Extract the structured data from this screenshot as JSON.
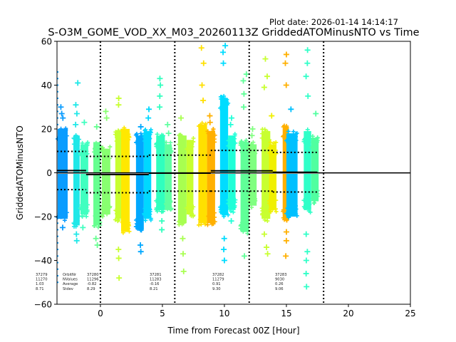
{
  "plot_date": "Plot date: 2026-01-14 14:14:17",
  "chart_data": {
    "type": "scatter",
    "title": "S-O3M_GOME_VOD_XX_M03_20260113Z GriddedATOMinusNTO vs Time",
    "xlabel": "Time from Forecast 00Z [Hour]",
    "ylabel": "GriddedATOMinusNTO",
    "xlim": [
      -3.5,
      25
    ],
    "ylim": [
      -60,
      60
    ],
    "xticks": [
      0,
      5,
      10,
      15,
      20,
      25
    ],
    "xtick_labels": [
      "0",
      "5",
      "10",
      "15",
      "20",
      "25"
    ],
    "yticks": [
      -60,
      -40,
      -20,
      0,
      20,
      40,
      60
    ],
    "ytick_labels": [
      "−60",
      "−40",
      "−20",
      "0",
      "20",
      "40",
      "60"
    ],
    "grid": false,
    "forecast_boundaries": [
      0,
      6,
      12,
      18
    ],
    "zero_line": 0,
    "marker": "+",
    "bands": [
      {
        "x": [
          -3.45,
          -2.64
        ],
        "color": "#0a9cff",
        "top": 21,
        "bottom": -22,
        "outliers": [
          30,
          27,
          25,
          -25
        ]
      },
      {
        "x": [
          -2.18,
          -1.67
        ],
        "color": "#20e8e8",
        "top": 18,
        "bottom": -25,
        "outliers": [
          41,
          31,
          27,
          22,
          -28,
          -31
        ]
      },
      {
        "x": [
          -1.61,
          -0.98
        ],
        "color": "#40ffc0",
        "top": 14,
        "bottom": -20,
        "outliers": [
          23,
          -25
        ]
      },
      {
        "x": [
          -0.57,
          0.0
        ],
        "color": "#66ff90",
        "top": 15,
        "bottom": -25,
        "outliers": [
          21,
          -30,
          -33
        ]
      },
      {
        "x": [
          0.11,
          0.8
        ],
        "color": "#88ff70",
        "top": 12,
        "bottom": -20,
        "outliers": [
          28,
          25
        ]
      },
      {
        "x": [
          1.2,
          1.67
        ],
        "color": "#c8ff30",
        "top": 20,
        "bottom": -22,
        "outliers": [
          34,
          31,
          -35,
          -39,
          -48
        ]
      },
      {
        "x": [
          1.67,
          2.36
        ],
        "color": "#ffe800",
        "top": 21,
        "bottom": -28,
        "outliers": []
      },
      {
        "x": [
          2.87,
          3.5
        ],
        "color": "#00a8ff",
        "top": 18,
        "bottom": -27,
        "outliers": [
          21,
          -33,
          -36
        ]
      },
      {
        "x": [
          3.5,
          4.1
        ],
        "color": "#00d8ff",
        "top": 20,
        "bottom": -22,
        "outliers": [
          29,
          25
        ]
      },
      {
        "x": [
          4.5,
          5.2
        ],
        "color": "#30ffbe",
        "top": 18,
        "bottom": -18,
        "outliers": [
          43,
          40,
          35,
          30,
          -22,
          -26
        ]
      },
      {
        "x": [
          5.2,
          5.75
        ],
        "color": "#60ffa0",
        "top": 14,
        "bottom": -18,
        "outliers": [
          22,
          18
        ]
      },
      {
        "x": [
          6.26,
          6.95
        ],
        "color": "#a8ff50",
        "top": 18,
        "bottom": -24,
        "outliers": [
          25,
          -30,
          -37,
          -45
        ]
      },
      {
        "x": [
          6.95,
          7.5
        ],
        "color": "#c8ff30",
        "top": 16,
        "bottom": -20,
        "outliers": []
      },
      {
        "x": [
          7.9,
          8.6
        ],
        "color": "#ffe000",
        "top": 23,
        "bottom": -24,
        "outliers": [
          57,
          50,
          40,
          33
        ]
      },
      {
        "x": [
          8.6,
          9.25
        ],
        "color": "#ffb000",
        "top": 20,
        "bottom": -24,
        "outliers": [
          26,
          23
        ]
      },
      {
        "x": [
          9.65,
          10.3
        ],
        "color": "#00dcff",
        "top": 35,
        "bottom": -20,
        "outliers": [
          58,
          55,
          50,
          -30,
          -35,
          -40
        ]
      },
      {
        "x": [
          10.3,
          10.9
        ],
        "color": "#20ffd8",
        "top": 18,
        "bottom": -18,
        "outliers": [
          25,
          22,
          -22
        ]
      },
      {
        "x": [
          11.3,
          12.0
        ],
        "color": "#60ff98",
        "top": 15,
        "bottom": -28,
        "outliers": [
          45,
          42,
          36,
          30,
          -38
        ]
      },
      {
        "x": [
          12.0,
          12.6
        ],
        "color": "#80ff80",
        "top": 14,
        "bottom": -16,
        "outliers": [
          20,
          17
        ]
      },
      {
        "x": [
          13.0,
          13.7
        ],
        "color": "#c8ff30",
        "top": 20,
        "bottom": -22,
        "outliers": [
          52,
          44,
          39,
          -28,
          -34,
          -37
        ]
      },
      {
        "x": [
          13.6,
          14.2
        ],
        "color": "#f0f000",
        "top": 14,
        "bottom": -18,
        "outliers": [
          26
        ]
      },
      {
        "x": [
          14.7,
          15.2
        ],
        "color": "#ffb000",
        "top": 22,
        "bottom": -22,
        "outliers": [
          54,
          50,
          40,
          -27,
          -31,
          -38
        ]
      },
      {
        "x": [
          15.0,
          15.9
        ],
        "color": "#00c0ff",
        "top": 19,
        "bottom": -21,
        "outliers": [
          29
        ]
      },
      {
        "x": [
          16.4,
          17.0
        ],
        "color": "#30ffc8",
        "top": 20,
        "bottom": -18,
        "outliers": [
          56,
          50,
          44,
          35,
          -28,
          -36,
          -40,
          -46,
          -52
        ]
      },
      {
        "x": [
          17.0,
          17.6
        ],
        "color": "#50ffa0",
        "top": 17,
        "bottom": -14,
        "outliers": [
          27
        ]
      }
    ],
    "orbits": [
      {
        "orbit": "37279",
        "x": [
          -3.5,
          -1.15
        ],
        "average": 1.03,
        "stdev": 8.71,
        "nvalues": "11270",
        "average_label": "1.03",
        "stdev_label": "8.71"
      },
      {
        "orbit": "37280",
        "x": [
          -1.15,
          3.9
        ],
        "average": -0.82,
        "stdev": 8.29,
        "nvalues": "11296",
        "average_label": "-0.82",
        "stdev_label": "8.29"
      },
      {
        "orbit": "37281",
        "x": [
          3.9,
          8.9
        ],
        "average": -0.16,
        "stdev": 8.21,
        "nvalues": "11283",
        "average_label": "-0.16",
        "stdev_label": "8.21"
      },
      {
        "orbit": "37282",
        "x": [
          8.9,
          13.9
        ],
        "average": 0.91,
        "stdev": 9.3,
        "nvalues": "11279",
        "average_label": "0.91",
        "stdev_label": "9.30"
      },
      {
        "orbit": "37283",
        "x": [
          13.9,
          17.5
        ],
        "average": 0.26,
        "stdev": 9.06,
        "nvalues": "9030",
        "average_label": "0.26",
        "stdev_label": "9.06"
      }
    ],
    "stat_labels": [
      "OrbitNr",
      "NValues",
      "Average",
      "Stdev"
    ]
  }
}
